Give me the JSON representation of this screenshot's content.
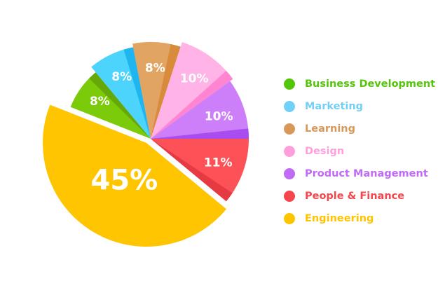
{
  "chart_data": {
    "type": "pie",
    "series": [
      {
        "category": "Engineering",
        "value": 45,
        "label": "45%",
        "color": "#ffc500",
        "shade": "#ffc500"
      },
      {
        "category": "Business Development",
        "value": 8,
        "label": "8%",
        "color": "#7ccb0b",
        "shade": "#66a80a"
      },
      {
        "category": "Marketing",
        "value": 8,
        "label": "8%",
        "color": "#4dd4fc",
        "shade": "#1fb6f0"
      },
      {
        "category": "Learning",
        "value": 8,
        "label": "8%",
        "color": "#e2a462",
        "shade": "#d88b3a"
      },
      {
        "category": "Design",
        "value": 10,
        "label": "10%",
        "color": "#ffb3e6",
        "shade": "#ff85d3"
      },
      {
        "category": "Product Management",
        "value": 10,
        "label": "10%",
        "color": "#cc7ff8",
        "shade": "#a94df0"
      },
      {
        "category": "People & Finance",
        "value": 11,
        "label": "11%",
        "color": "#fd5158",
        "shade": "#e63a42"
      }
    ],
    "legend": {
      "placement": "right",
      "items": [
        {
          "label": "Business Development",
          "color": "#55c50a"
        },
        {
          "label": "Marketing",
          "color": "#72d0f8"
        },
        {
          "label": "Learning",
          "color": "#d99859"
        },
        {
          "label": "Design",
          "color": "#ff9fdc"
        },
        {
          "label": "Product Management",
          "color": "#c16af5"
        },
        {
          "label": "People & Finance",
          "color": "#f6454d"
        },
        {
          "label": "Engineering",
          "color": "#ffc400"
        }
      ]
    },
    "exploded": [
      "Engineering"
    ]
  }
}
